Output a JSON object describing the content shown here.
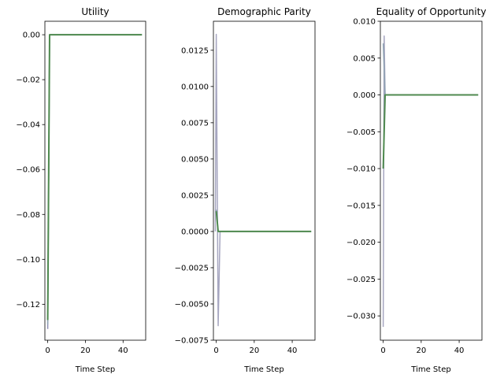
{
  "chart_data": [
    {
      "type": "line",
      "title": "Utility",
      "xlabel": "Time Step",
      "ylabel": "",
      "xlim": [
        -1.5,
        52
      ],
      "ylim": [
        -0.136,
        0.006
      ],
      "xticks": [
        0,
        20,
        40
      ],
      "xtick_labels": [
        "0",
        "20",
        "40"
      ],
      "yticks": [
        0.0,
        -0.02,
        -0.04,
        -0.06,
        -0.08,
        -0.1,
        -0.12
      ],
      "ytick_labels": [
        "0.00",
        "−0.02",
        "−0.04",
        "−0.06",
        "−0.08",
        "−0.10",
        "−0.12"
      ],
      "grid": false,
      "legend": "none",
      "series": [
        {
          "color": "#8f8fb5",
          "x": [
            0,
            1,
            2,
            10,
            20,
            30,
            40,
            50
          ],
          "y": [
            -0.131,
            0.0,
            0.0,
            0.0,
            0.0,
            0.0,
            0.0,
            0.0
          ]
        },
        {
          "color": "#8fa3b3",
          "x": [
            0,
            1,
            2,
            10,
            20,
            30,
            40,
            50
          ],
          "y": [
            -0.129,
            0.0,
            0.0,
            0.0,
            0.0,
            0.0,
            0.0,
            0.0
          ]
        },
        {
          "color": "#4f8a4f",
          "x": [
            0,
            1,
            2,
            10,
            20,
            30,
            40,
            50
          ],
          "y": [
            -0.127,
            0.0,
            0.0,
            0.0,
            0.0,
            0.0,
            0.0,
            0.0
          ]
        }
      ]
    },
    {
      "type": "line",
      "title": "Demographic Parity",
      "xlabel": "Time Step",
      "ylabel": "",
      "xlim": [
        -1.5,
        52
      ],
      "ylim": [
        -0.0075,
        0.0145
      ],
      "xticks": [
        0,
        20,
        40
      ],
      "xtick_labels": [
        "0",
        "20",
        "40"
      ],
      "yticks": [
        0.0125,
        0.01,
        0.0075,
        0.005,
        0.0025,
        0.0,
        -0.0025,
        -0.005,
        -0.0075
      ],
      "ytick_labels": [
        "0.0125",
        "0.0100",
        "0.0075",
        "0.0050",
        "0.0025",
        "0.0000",
        "−0.0025",
        "−0.0050",
        "−0.0075"
      ],
      "grid": false,
      "legend": "none",
      "series": [
        {
          "color": "#a6a6c0",
          "x": [
            -0.5,
            0,
            1,
            2,
            10,
            20,
            30,
            40,
            50
          ],
          "y": [
            0.0,
            0.0136,
            -0.0065,
            0.0,
            0.0,
            0.0,
            0.0,
            0.0,
            0.0
          ]
        },
        {
          "color": "#8fa3b3",
          "x": [
            0,
            1,
            2,
            10,
            20,
            30,
            40,
            50
          ],
          "y": [
            0.0015,
            0.0,
            0.0,
            0.0,
            0.0,
            0.0,
            0.0,
            0.0
          ]
        },
        {
          "color": "#4f8a4f",
          "x": [
            0,
            1,
            2,
            10,
            20,
            30,
            40,
            50
          ],
          "y": [
            0.0014,
            0.0,
            0.0,
            0.0,
            0.0,
            0.0,
            0.0,
            0.0
          ]
        }
      ]
    },
    {
      "type": "line",
      "title": "Equality of Opportunity",
      "xlabel": "Time Step",
      "ylabel": "",
      "xlim": [
        -1.5,
        52
      ],
      "ylim": [
        -0.0333,
        0.01
      ],
      "xticks": [
        0,
        20,
        40
      ],
      "xtick_labels": [
        "0",
        "20",
        "40"
      ],
      "yticks": [
        0.01,
        0.005,
        0.0,
        -0.005,
        -0.01,
        -0.015,
        -0.02,
        -0.025,
        -0.03
      ],
      "ytick_labels": [
        "0.010",
        "0.005",
        "0.000",
        "−0.005",
        "−0.010",
        "−0.015",
        "−0.020",
        "−0.025",
        "−0.030"
      ],
      "grid": false,
      "legend": "none",
      "series": [
        {
          "color": "#a6a6c0",
          "x": [
            0,
            0.5,
            1,
            2,
            10,
            20,
            30,
            40,
            50
          ],
          "y": [
            -0.0315,
            0.008,
            0.0,
            0.0,
            0.0,
            0.0,
            0.0,
            0.0,
            0.0
          ]
        },
        {
          "color": "#8fa3b3",
          "x": [
            0,
            1,
            2,
            10,
            20,
            30,
            40,
            50
          ],
          "y": [
            0.007,
            0.0,
            0.0,
            0.0,
            0.0,
            0.0,
            0.0,
            0.0
          ]
        },
        {
          "color": "#4f8a4f",
          "x": [
            0,
            1,
            2,
            10,
            20,
            30,
            40,
            50
          ],
          "y": [
            -0.01,
            0.0,
            0.0,
            0.0,
            0.0,
            0.0,
            0.0,
            0.0
          ]
        }
      ]
    }
  ]
}
